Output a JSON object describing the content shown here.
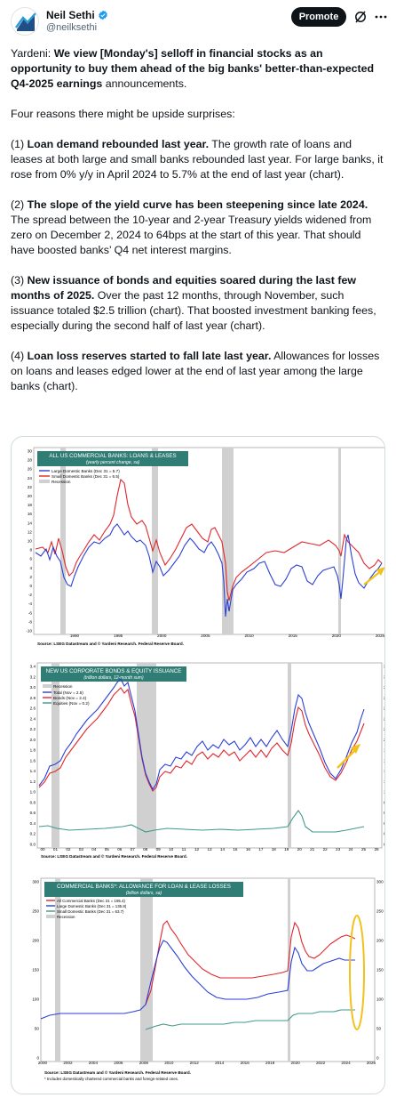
{
  "author": {
    "name": "Neil Sethi",
    "handle": "@neilksethi",
    "avatar_icon": "chart-logo-icon",
    "verified_icon": "verified-badge-icon"
  },
  "actions": {
    "promote_label": "Promote",
    "grok_icon": "grok-icon",
    "more_icon": "more-icon"
  },
  "tweet": {
    "p1_plain": "Yardeni: ",
    "p1_bold": "We view [Monday's] selloff in financial stocks as an opportunity to buy them ahead of the big banks' better-than-expected Q4-2025 earnings",
    "p1_tail": " announcements.",
    "p2": "Four reasons there might be upside surprises:",
    "p3_num": "(1) ",
    "p3_bold": "Loan demand rebounded last year.",
    "p3_tail": " The growth rate of loans and leases at both large and small banks rebounded last year. For large banks, it rose from 0% y/y in April 2024 to 5.7% at the end of last year (chart).",
    "p4_num": "(2) ",
    "p4_bold": "The slope of the yield curve has been steepening since late 2024.",
    "p4_tail": " The spread between the 10-year and 2-year Treasury yields widened from zero on December 2, 2024 to 64bps at the start of this year. That should have boosted banks’ Q4 net interest margins.",
    "p5_num": "(3) ",
    "p5_bold": "New issuance of bonds and equities soared during the last few months of 2025.",
    "p5_tail": " Over the past 12 months, through November, such issuance totaled $2.5 trillion (chart). That boosted investment banking fees, especially during the second half of last year (chart).",
    "p6_num": "(4) ",
    "p6_bold": "Loan loss reserves started to fall late last year.",
    "p6_tail": " Allowances for losses on loans and leases edged lower at the end of last year among the large banks (chart)."
  },
  "charts": [
    {
      "title": "ALL US COMMERCIAL BANKS: LOANS & LEASES",
      "subtitle": "(yearly percent change, sa)",
      "legend": [
        "Large Domestic Banks (Dec 31 = 5.7)",
        "Small Domestic Banks (Dec 31 = 6.5)",
        "Recession"
      ],
      "y_ticks": [
        "30",
        "28",
        "26",
        "24",
        "22",
        "20",
        "18",
        "16",
        "14",
        "12",
        "10",
        "8",
        "6",
        "4",
        "2",
        "0",
        "-2",
        "-4",
        "-6",
        "-8",
        "-10"
      ],
      "x_ticks": [
        "1990",
        "1995",
        "2000",
        "2005",
        "2010",
        "2015",
        "2020",
        "2025"
      ],
      "source": "Source: LSEG Datastream and © Yardeni Research. Federal Reserve Board.",
      "colors": {
        "large": "#2b3fd6",
        "small": "#e0262b",
        "recession": "#c8c8c8",
        "arrow": "#f2c21b"
      }
    },
    {
      "title": "NEW US CORPORATE BONDS & EQUITY ISSUANCE",
      "subtitle": "(trillion dollars, 12-month sum)",
      "legend": [
        "Recession",
        "Total (Nov = 2.5)",
        "Bonds (Nov = 2.4)",
        "Equities (Nov = 0.2)"
      ],
      "y_ticks": [
        "3.4",
        "3.2",
        "3.0",
        "2.8",
        "2.6",
        "2.4",
        "2.2",
        "2.0",
        "1.8",
        "1.6",
        "1.4",
        "1.2",
        "1.0",
        "0.8",
        "0.6",
        "0.4",
        "0.2",
        "0.0"
      ],
      "x_ticks": [
        "00",
        "01",
        "02",
        "03",
        "04",
        "05",
        "06",
        "07",
        "08",
        "09",
        "10",
        "11",
        "12",
        "13",
        "14",
        "15",
        "16",
        "17",
        "18",
        "19",
        "20",
        "21",
        "22",
        "23",
        "24",
        "25",
        "26"
      ],
      "source": "Source: LSEG Datastream and © Yardeni Research. Federal Reserve Board.",
      "colors": {
        "total": "#2b3fd6",
        "bonds": "#e0262b",
        "equities": "#3f9a8c",
        "arrow": "#f2c21b"
      }
    },
    {
      "title": "COMMERCIAL BANKS*: ALLOWANCE FOR LOAN & LEASE LOSSES",
      "subtitle": "(billion dollars, sa)",
      "legend": [
        "All Commercial Banks (Dec 31 = 195.4)",
        "Large Domestic Banks (Dec 31 = 135.8)",
        "Small Domestic Banks (Dec 31 = 63.7)",
        "Recession"
      ],
      "y_ticks": [
        "300",
        "250",
        "200",
        "150",
        "100",
        "50",
        "0"
      ],
      "x_ticks": [
        "2000",
        "2002",
        "2004",
        "2006",
        "2008",
        "2010",
        "2012",
        "2014",
        "2016",
        "2018",
        "2020",
        "2022",
        "2024",
        "2026"
      ],
      "source": "Source: LSEG Datastream and © Yardeni Research. Federal Reserve Board.",
      "footnote": "* Includes domestically chartered commercial banks and foreign-related ones.",
      "colors": {
        "all": "#e0262b",
        "large": "#2b3fd6",
        "small": "#3f9a8c",
        "circle": "#f2c21b"
      }
    }
  ]
}
